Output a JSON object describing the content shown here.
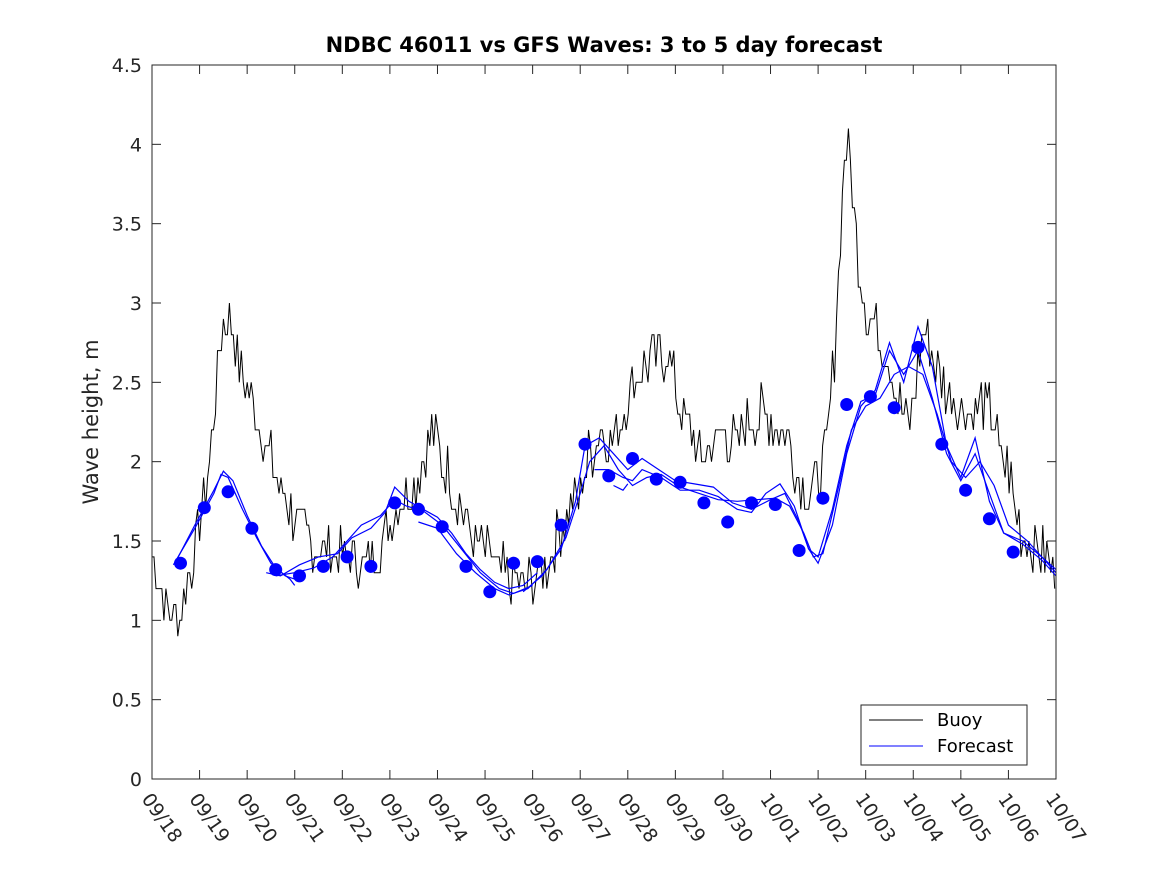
{
  "chart_data": {
    "type": "line",
    "title": "NDBC 46011 vs GFS Waves: 3 to 5 day forecast",
    "xlabel": "",
    "ylabel": "Wave height, m",
    "ylim": [
      0,
      4.5
    ],
    "xlim": [
      0,
      19
    ],
    "yticks": [
      0,
      0.5,
      1,
      1.5,
      2,
      2.5,
      3,
      3.5,
      4,
      4.5
    ],
    "ytick_labels": [
      "0",
      "0.5",
      "1",
      "1.5",
      "2",
      "2.5",
      "3",
      "3.5",
      "4",
      "4.5"
    ],
    "x_tick_labels": [
      "09/18",
      "09/19",
      "09/20",
      "09/21",
      "09/22",
      "09/23",
      "09/24",
      "09/25",
      "09/26",
      "09/27",
      "09/28",
      "09/29",
      "09/30",
      "10/01",
      "10/02",
      "10/03",
      "10/04",
      "10/05",
      "10/06",
      "10/07"
    ],
    "legend": {
      "position": "bottom-right",
      "entries": [
        "Buoy",
        "Forecast"
      ]
    },
    "colors": {
      "buoy": "#000000",
      "forecast": "#0000ff"
    },
    "buoy_anchors": [
      [
        0.0,
        1.4
      ],
      [
        0.15,
        1.25
      ],
      [
        0.35,
        1.05
      ],
      [
        0.6,
        1.05
      ],
      [
        0.8,
        1.3
      ],
      [
        1.0,
        1.6
      ],
      [
        1.2,
        2.0
      ],
      [
        1.35,
        2.5
      ],
      [
        1.5,
        2.9
      ],
      [
        1.7,
        2.85
      ],
      [
        1.85,
        2.6
      ],
      [
        2.1,
        2.4
      ],
      [
        2.35,
        2.15
      ],
      [
        2.6,
        1.9
      ],
      [
        2.85,
        1.75
      ],
      [
        3.1,
        1.55
      ],
      [
        3.35,
        1.5
      ],
      [
        3.6,
        1.45
      ],
      [
        3.85,
        1.4
      ],
      [
        4.1,
        1.42
      ],
      [
        4.3,
        1.38
      ],
      [
        4.5,
        1.35
      ],
      [
        4.75,
        1.45
      ],
      [
        5.0,
        1.6
      ],
      [
        5.25,
        1.75
      ],
      [
        5.5,
        1.85
      ],
      [
        5.75,
        2.05
      ],
      [
        5.9,
        2.2
      ],
      [
        6.05,
        2.05
      ],
      [
        6.25,
        1.9
      ],
      [
        6.45,
        1.75
      ],
      [
        6.7,
        1.55
      ],
      [
        6.9,
        1.45
      ],
      [
        7.1,
        1.4
      ],
      [
        7.3,
        1.3
      ],
      [
        7.55,
        1.25
      ],
      [
        7.8,
        1.2
      ],
      [
        8.05,
        1.25
      ],
      [
        8.3,
        1.35
      ],
      [
        8.55,
        1.55
      ],
      [
        8.8,
        1.7
      ],
      [
        9.0,
        1.8
      ],
      [
        9.2,
        2.05
      ],
      [
        9.45,
        2.2
      ],
      [
        9.7,
        2.15
      ],
      [
        9.9,
        2.3
      ],
      [
        10.1,
        2.5
      ],
      [
        10.35,
        2.6
      ],
      [
        10.6,
        2.65
      ],
      [
        10.85,
        2.7
      ],
      [
        11.05,
        2.4
      ],
      [
        11.3,
        2.2
      ],
      [
        11.55,
        2.0
      ],
      [
        11.8,
        2.1
      ],
      [
        12.05,
        2.2
      ],
      [
        12.3,
        2.1
      ],
      [
        12.55,
        2.25
      ],
      [
        12.85,
        2.3
      ],
      [
        13.1,
        2.25
      ],
      [
        13.35,
        2.15
      ],
      [
        13.55,
        1.9
      ],
      [
        13.8,
        1.8
      ],
      [
        14.0,
        1.9
      ],
      [
        14.2,
        2.1
      ],
      [
        14.35,
        2.7
      ],
      [
        14.45,
        3.3
      ],
      [
        14.55,
        3.9
      ],
      [
        14.62,
        4.05
      ],
      [
        14.72,
        3.7
      ],
      [
        14.85,
        3.3
      ],
      [
        15.05,
        2.9
      ],
      [
        15.3,
        2.8
      ],
      [
        15.55,
        2.6
      ],
      [
        15.75,
        2.3
      ],
      [
        15.9,
        2.2
      ],
      [
        16.1,
        2.6
      ],
      [
        16.25,
        2.85
      ],
      [
        16.45,
        2.6
      ],
      [
        16.7,
        2.45
      ],
      [
        16.95,
        2.35
      ],
      [
        17.2,
        2.3
      ],
      [
        17.45,
        2.4
      ],
      [
        17.7,
        2.25
      ],
      [
        17.85,
        2.0
      ],
      [
        18.0,
        1.95
      ],
      [
        18.15,
        1.7
      ],
      [
        18.3,
        1.55
      ],
      [
        18.5,
        1.5
      ],
      [
        18.75,
        1.4
      ],
      [
        19.0,
        1.3
      ]
    ],
    "forecast_lines": [
      [
        [
          0.45,
          1.35
        ],
        [
          0.9,
          1.58
        ],
        [
          1.3,
          1.8
        ],
        [
          1.45,
          1.92
        ],
        [
          1.6,
          1.9
        ],
        [
          1.9,
          1.7
        ],
        [
          2.2,
          1.52
        ],
        [
          2.5,
          1.36
        ],
        [
          2.8,
          1.28
        ],
        [
          3.1,
          1.25
        ]
      ],
      [
        [
          0.5,
          1.37
        ],
        [
          0.9,
          1.6
        ],
        [
          1.3,
          1.82
        ],
        [
          1.5,
          1.94
        ],
        [
          1.7,
          1.88
        ],
        [
          2.0,
          1.66
        ],
        [
          2.3,
          1.47
        ],
        [
          2.6,
          1.33
        ],
        [
          2.9,
          1.26
        ],
        [
          3.0,
          1.22
        ]
      ],
      [
        [
          2.4,
          1.3
        ],
        [
          2.7,
          1.28
        ],
        [
          3.1,
          1.35
        ],
        [
          3.5,
          1.4
        ],
        [
          3.9,
          1.42
        ],
        [
          4.2,
          1.52
        ],
        [
          4.6,
          1.58
        ],
        [
          4.9,
          1.68
        ],
        [
          5.1,
          1.84
        ],
        [
          5.4,
          1.75
        ],
        [
          5.7,
          1.7
        ],
        [
          6.0,
          1.65
        ],
        [
          6.3,
          1.55
        ],
        [
          6.6,
          1.42
        ],
        [
          6.9,
          1.32
        ],
        [
          7.2,
          1.24
        ],
        [
          7.5,
          1.2
        ],
        [
          7.8,
          1.22
        ],
        [
          8.1,
          1.3
        ]
      ],
      [
        [
          2.6,
          1.28
        ],
        [
          3.0,
          1.3
        ],
        [
          3.4,
          1.33
        ],
        [
          3.8,
          1.4
        ],
        [
          4.1,
          1.5
        ],
        [
          4.4,
          1.6
        ],
        [
          4.8,
          1.66
        ],
        [
          5.1,
          1.76
        ],
        [
          5.35,
          1.72
        ],
        [
          5.7,
          1.69
        ],
        [
          6.1,
          1.6
        ],
        [
          6.5,
          1.45
        ],
        [
          6.9,
          1.3
        ],
        [
          7.3,
          1.2
        ],
        [
          7.6,
          1.17
        ],
        [
          8.0,
          1.22
        ]
      ],
      [
        [
          5.6,
          1.62
        ],
        [
          6.0,
          1.58
        ],
        [
          6.4,
          1.42
        ],
        [
          6.8,
          1.3
        ],
        [
          7.2,
          1.2
        ],
        [
          7.5,
          1.16
        ],
        [
          7.9,
          1.2
        ],
        [
          8.3,
          1.32
        ],
        [
          8.7,
          1.52
        ],
        [
          9.0,
          1.8
        ],
        [
          9.2,
          2.0
        ],
        [
          9.5,
          2.1
        ],
        [
          9.8,
          1.95
        ],
        [
          10.1,
          1.85
        ],
        [
          10.4,
          1.9
        ],
        [
          10.7,
          1.92
        ],
        [
          11.1,
          1.84
        ],
        [
          11.5,
          1.8
        ],
        [
          11.9,
          1.76
        ],
        [
          12.3,
          1.75
        ],
        [
          12.7,
          1.76
        ],
        [
          13.1,
          1.77
        ],
        [
          13.4,
          1.72
        ],
        [
          13.7,
          1.55
        ],
        [
          13.9,
          1.4
        ],
        [
          14.1,
          1.42
        ],
        [
          14.4,
          1.8
        ],
        [
          14.7,
          2.2
        ],
        [
          15.0,
          2.35
        ],
        [
          15.3,
          2.4
        ],
        [
          15.6,
          2.55
        ],
        [
          15.9,
          2.6
        ],
        [
          16.2,
          2.55
        ],
        [
          16.5,
          2.3
        ],
        [
          16.8,
          2.0
        ],
        [
          17.1,
          1.9
        ],
        [
          17.4,
          2.0
        ],
        [
          17.7,
          1.85
        ],
        [
          18.0,
          1.6
        ],
        [
          18.4,
          1.5
        ],
        [
          18.7,
          1.4
        ],
        [
          19.0,
          1.3
        ]
      ],
      [
        [
          7.8,
          1.18
        ],
        [
          8.2,
          1.28
        ],
        [
          8.6,
          1.45
        ],
        [
          8.9,
          1.75
        ],
        [
          9.1,
          2.1
        ],
        [
          9.4,
          2.15
        ],
        [
          9.7,
          2.05
        ],
        [
          10.0,
          1.95
        ],
        [
          10.3,
          2.02
        ],
        [
          10.6,
          1.96
        ],
        [
          11.0,
          1.88
        ],
        [
          11.4,
          1.86
        ],
        [
          11.8,
          1.84
        ],
        [
          12.2,
          1.74
        ],
        [
          12.6,
          1.7
        ],
        [
          13.0,
          1.76
        ],
        [
          13.3,
          1.8
        ],
        [
          13.6,
          1.62
        ],
        [
          13.8,
          1.45
        ],
        [
          14.0,
          1.4
        ],
        [
          14.3,
          1.7
        ],
        [
          14.6,
          2.1
        ],
        [
          14.9,
          2.38
        ],
        [
          15.2,
          2.42
        ],
        [
          15.5,
          2.7
        ],
        [
          15.8,
          2.55
        ],
        [
          16.1,
          2.7
        ],
        [
          16.4,
          2.4
        ],
        [
          16.7,
          2.05
        ],
        [
          17.0,
          1.88
        ],
        [
          17.3,
          2.05
        ],
        [
          17.6,
          1.8
        ],
        [
          17.9,
          1.55
        ],
        [
          18.3,
          1.5
        ],
        [
          18.7,
          1.4
        ],
        [
          19.0,
          1.32
        ]
      ],
      [
        [
          9.3,
          1.95
        ],
        [
          9.6,
          1.95
        ],
        [
          9.9,
          1.9
        ],
        [
          10.1,
          1.88
        ],
        [
          10.3,
          1.95
        ],
        [
          10.7,
          1.9
        ],
        [
          11.1,
          1.82
        ],
        [
          11.5,
          1.82
        ],
        [
          11.9,
          1.78
        ],
        [
          12.3,
          1.7
        ],
        [
          12.6,
          1.68
        ],
        [
          12.9,
          1.8
        ],
        [
          13.2,
          1.86
        ],
        [
          13.5,
          1.72
        ],
        [
          13.8,
          1.45
        ],
        [
          14.0,
          1.36
        ],
        [
          14.3,
          1.6
        ],
        [
          14.6,
          2.05
        ],
        [
          14.9,
          2.35
        ],
        [
          15.2,
          2.45
        ],
        [
          15.5,
          2.75
        ],
        [
          15.8,
          2.5
        ],
        [
          16.1,
          2.85
        ],
        [
          16.4,
          2.6
        ],
        [
          16.7,
          2.1
        ],
        [
          17.0,
          1.9
        ],
        [
          17.3,
          2.15
        ],
        [
          17.6,
          1.75
        ],
        [
          17.9,
          1.55
        ],
        [
          18.3,
          1.48
        ],
        [
          18.7,
          1.38
        ],
        [
          19.0,
          1.28
        ]
      ],
      [
        [
          9.7,
          1.85
        ],
        [
          9.9,
          1.82
        ],
        [
          10.0,
          1.86
        ]
      ]
    ],
    "forecast_points": [
      [
        0.6,
        1.36
      ],
      [
        1.1,
        1.71
      ],
      [
        1.6,
        1.81
      ],
      [
        2.1,
        1.58
      ],
      [
        2.6,
        1.32
      ],
      [
        3.1,
        1.28
      ],
      [
        3.6,
        1.34
      ],
      [
        4.1,
        1.4
      ],
      [
        4.6,
        1.34
      ],
      [
        5.1,
        1.74
      ],
      [
        5.6,
        1.7
      ],
      [
        6.1,
        1.59
      ],
      [
        6.6,
        1.34
      ],
      [
        7.1,
        1.18
      ],
      [
        7.6,
        1.36
      ],
      [
        8.1,
        1.37
      ],
      [
        8.6,
        1.6
      ],
      [
        9.1,
        2.11
      ],
      [
        9.6,
        1.91
      ],
      [
        10.1,
        2.02
      ],
      [
        10.6,
        1.89
      ],
      [
        11.1,
        1.87
      ],
      [
        11.6,
        1.74
      ],
      [
        12.1,
        1.62
      ],
      [
        12.6,
        1.74
      ],
      [
        13.1,
        1.73
      ],
      [
        13.6,
        1.44
      ],
      [
        14.1,
        1.77
      ],
      [
        14.6,
        2.36
      ],
      [
        15.1,
        2.41
      ],
      [
        15.6,
        2.34
      ],
      [
        16.1,
        2.72
      ],
      [
        16.6,
        2.11
      ],
      [
        17.1,
        1.82
      ],
      [
        17.6,
        1.64
      ],
      [
        18.1,
        1.43
      ]
    ]
  }
}
